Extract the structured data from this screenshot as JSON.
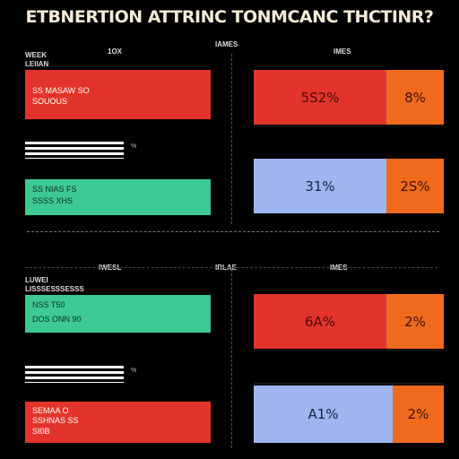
{
  "title": "ETBNERTION ATTRINC TONMCANC THCTINR?",
  "colors": {
    "red": "#e3342b",
    "green": "#3dc994",
    "orange": "#f06a1e",
    "blue": "#9eb5f0",
    "background": "#000000"
  },
  "top": {
    "col_left": "1OX",
    "col_mid": "IAMES",
    "col_right": "IMES",
    "left_header": [
      "WEEK",
      "LEIIAN"
    ],
    "left_bars": [
      {
        "line1": "SS MASAW SO",
        "line2": "SOUOUS",
        "color": "red"
      },
      {
        "line1": "SS NIAS FS",
        "line2": "SSSS XHS",
        "color": "green"
      }
    ],
    "hash_mark": "%",
    "right_rows": [
      {
        "main_label": "5S2%",
        "side_label": "8%",
        "main_color": "red",
        "side_color": "orange",
        "main_fraction": 0.7
      },
      {
        "main_label": "31%",
        "side_label": "2S%",
        "main_color": "blue",
        "side_color": "orange",
        "main_fraction": 0.7
      }
    ]
  },
  "bottom": {
    "col_left": "IWESL",
    "col_mid": "IRLAE",
    "col_right": "IMES",
    "left_header": [
      "LUWEI",
      "LISSSESSSESSS"
    ],
    "left_bars": [
      {
        "line1": "NSS T50",
        "line2": "DOS ONN 90",
        "color": "green"
      },
      {
        "line1": "SEMAA O",
        "line2": "SSHNAS SS",
        "line3": "SI0B",
        "color": "red"
      }
    ],
    "hash_mark": "%",
    "right_rows": [
      {
        "main_label": "6A%",
        "side_label": "2%",
        "main_color": "red",
        "side_color": "orange",
        "main_fraction": 0.7
      },
      {
        "main_label": "A1%",
        "side_label": "2%",
        "main_color": "blue",
        "side_color": "orange",
        "main_fraction": 0.73
      }
    ]
  },
  "chart_data": [
    {
      "type": "bar",
      "title": "",
      "categories": [
        "5S2%",
        "31%"
      ],
      "series": [
        {
          "values": [
            52,
            31
          ]
        },
        {
          "values": [
            8,
            25
          ]
        }
      ]
    },
    {
      "type": "bar",
      "title": "",
      "categories": [
        "6A%",
        "A1%"
      ],
      "series": [
        {
          "values": [
            64,
            41
          ]
        },
        {
          "values": [
            2,
            2
          ]
        }
      ]
    }
  ]
}
